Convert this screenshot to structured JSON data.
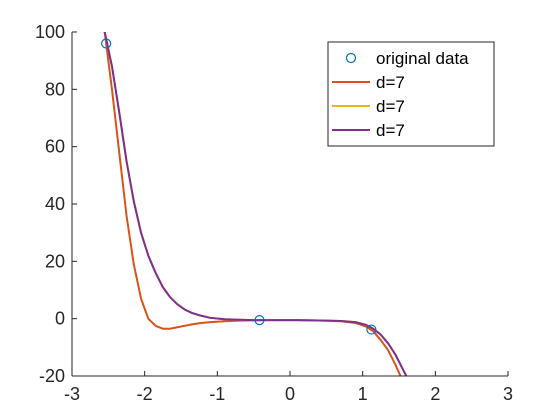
{
  "chart_data": {
    "type": "line",
    "title": "",
    "xlabel": "",
    "ylabel": "",
    "xlim": [
      -3,
      3
    ],
    "ylim": [
      -20,
      100
    ],
    "grid": false,
    "legend_position": "top-right",
    "x_ticks": [
      -3,
      -2,
      -1,
      0,
      1,
      2,
      3
    ],
    "y_ticks": [
      -20,
      0,
      20,
      40,
      60,
      80,
      100
    ],
    "points": {
      "name": "original data",
      "color": "#0072BD",
      "x": [
        -2.53,
        -0.42,
        1.12
      ],
      "y": [
        96,
        -0.5,
        -3.8
      ]
    },
    "series": [
      {
        "name": "d=7",
        "color": "#D95319",
        "x": [
          -2.55,
          -2.45,
          -2.35,
          -2.25,
          -2.15,
          -2.05,
          -1.95,
          -1.85,
          -1.75,
          -1.65,
          -1.55,
          -1.45,
          -1.35,
          -1.25,
          -1.1,
          -0.9,
          -0.7,
          -0.5,
          -0.3,
          -0.1,
          0.1,
          0.3,
          0.5,
          0.7,
          0.9,
          1.05,
          1.15,
          1.25,
          1.35,
          1.45,
          1.52
        ],
        "y": [
          100,
          80,
          58,
          36,
          19,
          7,
          0,
          -2.5,
          -3.5,
          -3.5,
          -3,
          -2.5,
          -2,
          -1.6,
          -1.2,
          -0.9,
          -0.7,
          -0.6,
          -0.5,
          -0.5,
          -0.5,
          -0.6,
          -0.7,
          -0.9,
          -1.5,
          -2.8,
          -4.5,
          -7.5,
          -11,
          -16,
          -20
        ]
      },
      {
        "name": "d=7",
        "color": "#EDB120",
        "x": [
          -2.55,
          -2.45,
          -2.35,
          -2.25,
          -2.15,
          -2.05,
          -1.95,
          -1.85,
          -1.75,
          -1.65,
          -1.55,
          -1.45,
          -1.35,
          -1.25,
          -1.1,
          -0.9,
          -0.7,
          -0.5,
          -0.3,
          -0.1,
          0.1,
          0.3,
          0.5,
          0.7,
          0.9,
          1.05,
          1.15,
          1.25,
          1.35,
          1.45,
          1.55,
          1.6
        ],
        "y": [
          100,
          88,
          72,
          55,
          41,
          30,
          22,
          16,
          11,
          7.5,
          5,
          3.2,
          2,
          1.2,
          0.3,
          -0.2,
          -0.4,
          -0.5,
          -0.5,
          -0.5,
          -0.5,
          -0.6,
          -0.7,
          -0.8,
          -1.2,
          -2.2,
          -3.6,
          -5.6,
          -8.6,
          -12.5,
          -17.5,
          -20
        ]
      },
      {
        "name": "d=7",
        "color": "#7E2F8E",
        "x": [
          -2.55,
          -2.45,
          -2.35,
          -2.25,
          -2.15,
          -2.05,
          -1.95,
          -1.85,
          -1.75,
          -1.65,
          -1.55,
          -1.45,
          -1.35,
          -1.25,
          -1.1,
          -0.9,
          -0.7,
          -0.5,
          -0.3,
          -0.1,
          0.1,
          0.3,
          0.5,
          0.7,
          0.9,
          1.05,
          1.15,
          1.25,
          1.35,
          1.45,
          1.55,
          1.6
        ],
        "y": [
          100,
          88,
          72,
          55,
          41,
          30,
          22,
          16,
          11,
          7.5,
          5,
          3.2,
          2,
          1.2,
          0.3,
          -0.2,
          -0.4,
          -0.5,
          -0.5,
          -0.5,
          -0.5,
          -0.6,
          -0.7,
          -0.8,
          -1.2,
          -2.2,
          -3.6,
          -5.6,
          -8.6,
          -12.5,
          -17.5,
          -20
        ]
      }
    ]
  }
}
